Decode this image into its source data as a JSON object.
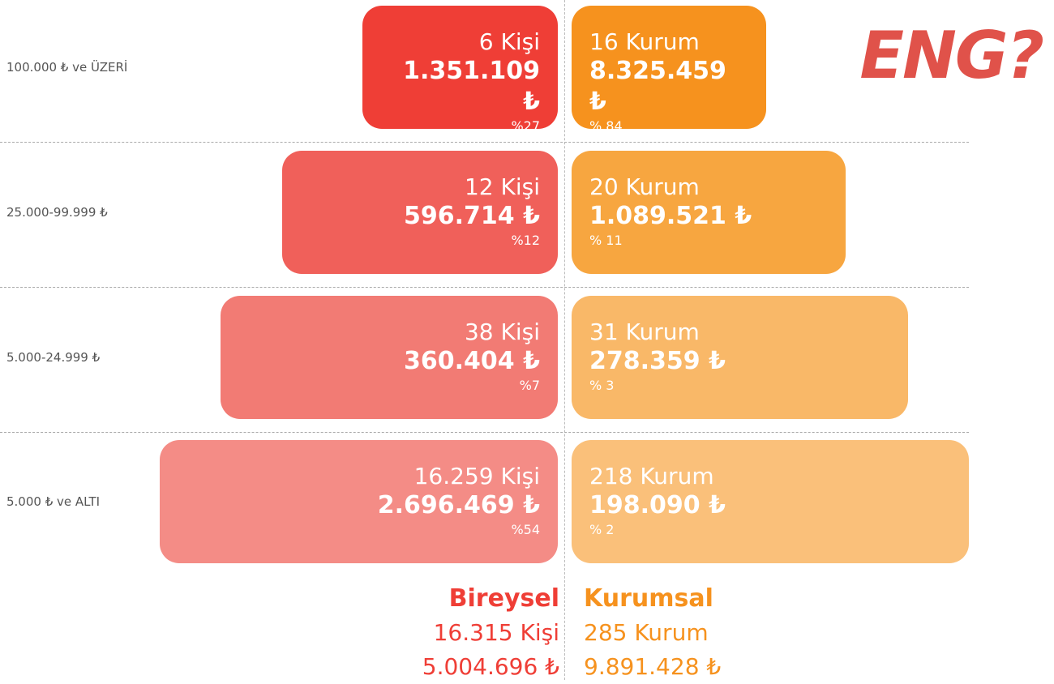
{
  "header": {
    "title": "ENG?"
  },
  "rows": [
    {
      "label": "100.000 ₺ ve ÜZERİ",
      "individual": {
        "count": "6 Kişi",
        "amount": "1.351.109 ₺",
        "share": "%27"
      },
      "institutional": {
        "count": "16 Kurum",
        "amount": "8.325.459  ₺",
        "share": "% 84"
      }
    },
    {
      "label": "25.000-99.999 ₺",
      "individual": {
        "count": "12 Kişi",
        "amount": "596.714 ₺",
        "share": "%12"
      },
      "institutional": {
        "count": "20 Kurum",
        "amount": "1.089.521  ₺",
        "share": "% 11"
      }
    },
    {
      "label": "5.000-24.999 ₺",
      "individual": {
        "count": "38 Kişi",
        "amount": "360.404 ₺",
        "share": "%7"
      },
      "institutional": {
        "count": "31 Kurum",
        "amount": "278.359  ₺",
        "share": "% 3"
      }
    },
    {
      "label": "5.000 ₺  ve ALTI",
      "individual": {
        "count": "16.259 Kişi",
        "amount": "2.696.469 ₺",
        "share": "%54"
      },
      "institutional": {
        "count": "218 Kurum",
        "amount": "198.090 ₺",
        "share": "% 2"
      }
    }
  ],
  "totals": {
    "individual": {
      "title": "Bireysel",
      "count": "16.315 Kişi",
      "amount": "5.004.696 ₺"
    },
    "institutional": {
      "title": "Kurumsal",
      "count": "285 Kurum",
      "amount": "9.891.428 ₺"
    }
  }
}
